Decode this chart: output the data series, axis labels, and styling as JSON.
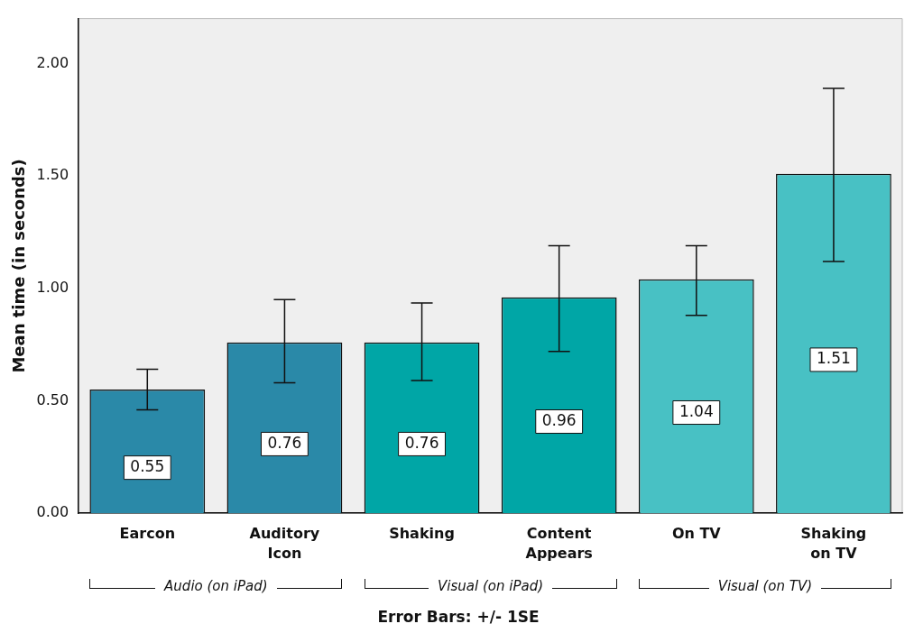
{
  "chart_data": {
    "type": "bar",
    "xlabel": "Error Bars: +/- 1SE",
    "ylabel": "Mean time (in seconds)",
    "categories": [
      "Earcon",
      "Auditory\nIcon",
      "Shaking",
      "Content\nAppears",
      "On TV",
      "Shaking\non TV"
    ],
    "values": [
      0.55,
      0.76,
      0.76,
      0.96,
      1.04,
      1.51
    ],
    "colors": [
      "#2a89a8",
      "#2a89a8",
      "#00a6a6",
      "#00a6a6",
      "#48c1c4",
      "#48c1c4"
    ],
    "errors": [
      [
        0.46,
        0.64
      ],
      [
        0.58,
        0.95
      ],
      [
        0.59,
        0.935
      ],
      [
        0.72,
        1.19
      ],
      [
        0.88,
        1.19
      ],
      [
        1.12,
        1.89
      ]
    ],
    "data_labels": true,
    "ylim": [
      0,
      2.2
    ],
    "yticks": [
      {
        "value": 0,
        "label": "0.00"
      },
      {
        "value": 0.5,
        "label": "0.50"
      },
      {
        "value": 1,
        "label": "1.00"
      },
      {
        "value": 1.5,
        "label": "1.50"
      },
      {
        "value": 2,
        "label": "2.00"
      }
    ],
    "annotations": [
      "Audio (on iPad)",
      "Visual (on iPad)",
      "Visual (on TV)"
    ],
    "grid": false,
    "legend": false
  }
}
